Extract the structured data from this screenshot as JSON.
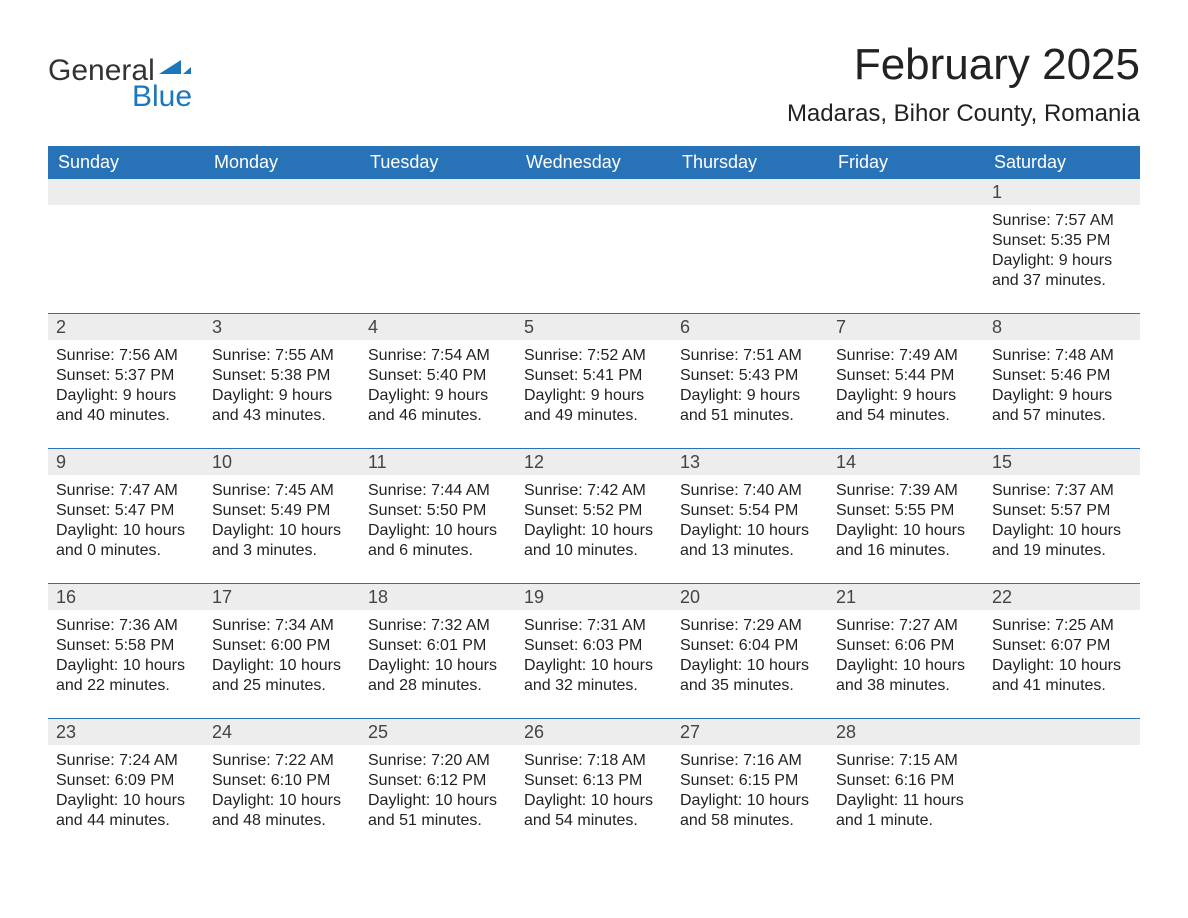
{
  "logo": {
    "text1": "General",
    "text2": "Blue",
    "color": "#1c76bc"
  },
  "title": "February 2025",
  "location": "Madaras, Bihor County, Romania",
  "colors": {
    "header_bg": "#2872b8",
    "header_text": "#ffffff",
    "daynum_bg": "#ededed",
    "row_border": "#2872b8",
    "body_text": "#222222"
  },
  "day_names": [
    "Sunday",
    "Monday",
    "Tuesday",
    "Wednesday",
    "Thursday",
    "Friday",
    "Saturday"
  ],
  "weeks": [
    [
      {
        "day": "",
        "sunrise": "",
        "sunset": "",
        "daylight": ""
      },
      {
        "day": "",
        "sunrise": "",
        "sunset": "",
        "daylight": ""
      },
      {
        "day": "",
        "sunrise": "",
        "sunset": "",
        "daylight": ""
      },
      {
        "day": "",
        "sunrise": "",
        "sunset": "",
        "daylight": ""
      },
      {
        "day": "",
        "sunrise": "",
        "sunset": "",
        "daylight": ""
      },
      {
        "day": "",
        "sunrise": "",
        "sunset": "",
        "daylight": ""
      },
      {
        "day": "1",
        "sunrise": "Sunrise: 7:57 AM",
        "sunset": "Sunset: 5:35 PM",
        "daylight": "Daylight: 9 hours and 37 minutes."
      }
    ],
    [
      {
        "day": "2",
        "sunrise": "Sunrise: 7:56 AM",
        "sunset": "Sunset: 5:37 PM",
        "daylight": "Daylight: 9 hours and 40 minutes."
      },
      {
        "day": "3",
        "sunrise": "Sunrise: 7:55 AM",
        "sunset": "Sunset: 5:38 PM",
        "daylight": "Daylight: 9 hours and 43 minutes."
      },
      {
        "day": "4",
        "sunrise": "Sunrise: 7:54 AM",
        "sunset": "Sunset: 5:40 PM",
        "daylight": "Daylight: 9 hours and 46 minutes."
      },
      {
        "day": "5",
        "sunrise": "Sunrise: 7:52 AM",
        "sunset": "Sunset: 5:41 PM",
        "daylight": "Daylight: 9 hours and 49 minutes."
      },
      {
        "day": "6",
        "sunrise": "Sunrise: 7:51 AM",
        "sunset": "Sunset: 5:43 PM",
        "daylight": "Daylight: 9 hours and 51 minutes."
      },
      {
        "day": "7",
        "sunrise": "Sunrise: 7:49 AM",
        "sunset": "Sunset: 5:44 PM",
        "daylight": "Daylight: 9 hours and 54 minutes."
      },
      {
        "day": "8",
        "sunrise": "Sunrise: 7:48 AM",
        "sunset": "Sunset: 5:46 PM",
        "daylight": "Daylight: 9 hours and 57 minutes."
      }
    ],
    [
      {
        "day": "9",
        "sunrise": "Sunrise: 7:47 AM",
        "sunset": "Sunset: 5:47 PM",
        "daylight": "Daylight: 10 hours and 0 minutes."
      },
      {
        "day": "10",
        "sunrise": "Sunrise: 7:45 AM",
        "sunset": "Sunset: 5:49 PM",
        "daylight": "Daylight: 10 hours and 3 minutes."
      },
      {
        "day": "11",
        "sunrise": "Sunrise: 7:44 AM",
        "sunset": "Sunset: 5:50 PM",
        "daylight": "Daylight: 10 hours and 6 minutes."
      },
      {
        "day": "12",
        "sunrise": "Sunrise: 7:42 AM",
        "sunset": "Sunset: 5:52 PM",
        "daylight": "Daylight: 10 hours and 10 minutes."
      },
      {
        "day": "13",
        "sunrise": "Sunrise: 7:40 AM",
        "sunset": "Sunset: 5:54 PM",
        "daylight": "Daylight: 10 hours and 13 minutes."
      },
      {
        "day": "14",
        "sunrise": "Sunrise: 7:39 AM",
        "sunset": "Sunset: 5:55 PM",
        "daylight": "Daylight: 10 hours and 16 minutes."
      },
      {
        "day": "15",
        "sunrise": "Sunrise: 7:37 AM",
        "sunset": "Sunset: 5:57 PM",
        "daylight": "Daylight: 10 hours and 19 minutes."
      }
    ],
    [
      {
        "day": "16",
        "sunrise": "Sunrise: 7:36 AM",
        "sunset": "Sunset: 5:58 PM",
        "daylight": "Daylight: 10 hours and 22 minutes."
      },
      {
        "day": "17",
        "sunrise": "Sunrise: 7:34 AM",
        "sunset": "Sunset: 6:00 PM",
        "daylight": "Daylight: 10 hours and 25 minutes."
      },
      {
        "day": "18",
        "sunrise": "Sunrise: 7:32 AM",
        "sunset": "Sunset: 6:01 PM",
        "daylight": "Daylight: 10 hours and 28 minutes."
      },
      {
        "day": "19",
        "sunrise": "Sunrise: 7:31 AM",
        "sunset": "Sunset: 6:03 PM",
        "daylight": "Daylight: 10 hours and 32 minutes."
      },
      {
        "day": "20",
        "sunrise": "Sunrise: 7:29 AM",
        "sunset": "Sunset: 6:04 PM",
        "daylight": "Daylight: 10 hours and 35 minutes."
      },
      {
        "day": "21",
        "sunrise": "Sunrise: 7:27 AM",
        "sunset": "Sunset: 6:06 PM",
        "daylight": "Daylight: 10 hours and 38 minutes."
      },
      {
        "day": "22",
        "sunrise": "Sunrise: 7:25 AM",
        "sunset": "Sunset: 6:07 PM",
        "daylight": "Daylight: 10 hours and 41 minutes."
      }
    ],
    [
      {
        "day": "23",
        "sunrise": "Sunrise: 7:24 AM",
        "sunset": "Sunset: 6:09 PM",
        "daylight": "Daylight: 10 hours and 44 minutes."
      },
      {
        "day": "24",
        "sunrise": "Sunrise: 7:22 AM",
        "sunset": "Sunset: 6:10 PM",
        "daylight": "Daylight: 10 hours and 48 minutes."
      },
      {
        "day": "25",
        "sunrise": "Sunrise: 7:20 AM",
        "sunset": "Sunset: 6:12 PM",
        "daylight": "Daylight: 10 hours and 51 minutes."
      },
      {
        "day": "26",
        "sunrise": "Sunrise: 7:18 AM",
        "sunset": "Sunset: 6:13 PM",
        "daylight": "Daylight: 10 hours and 54 minutes."
      },
      {
        "day": "27",
        "sunrise": "Sunrise: 7:16 AM",
        "sunset": "Sunset: 6:15 PM",
        "daylight": "Daylight: 10 hours and 58 minutes."
      },
      {
        "day": "28",
        "sunrise": "Sunrise: 7:15 AM",
        "sunset": "Sunset: 6:16 PM",
        "daylight": "Daylight: 11 hours and 1 minute."
      },
      {
        "day": "",
        "sunrise": "",
        "sunset": "",
        "daylight": ""
      }
    ]
  ]
}
